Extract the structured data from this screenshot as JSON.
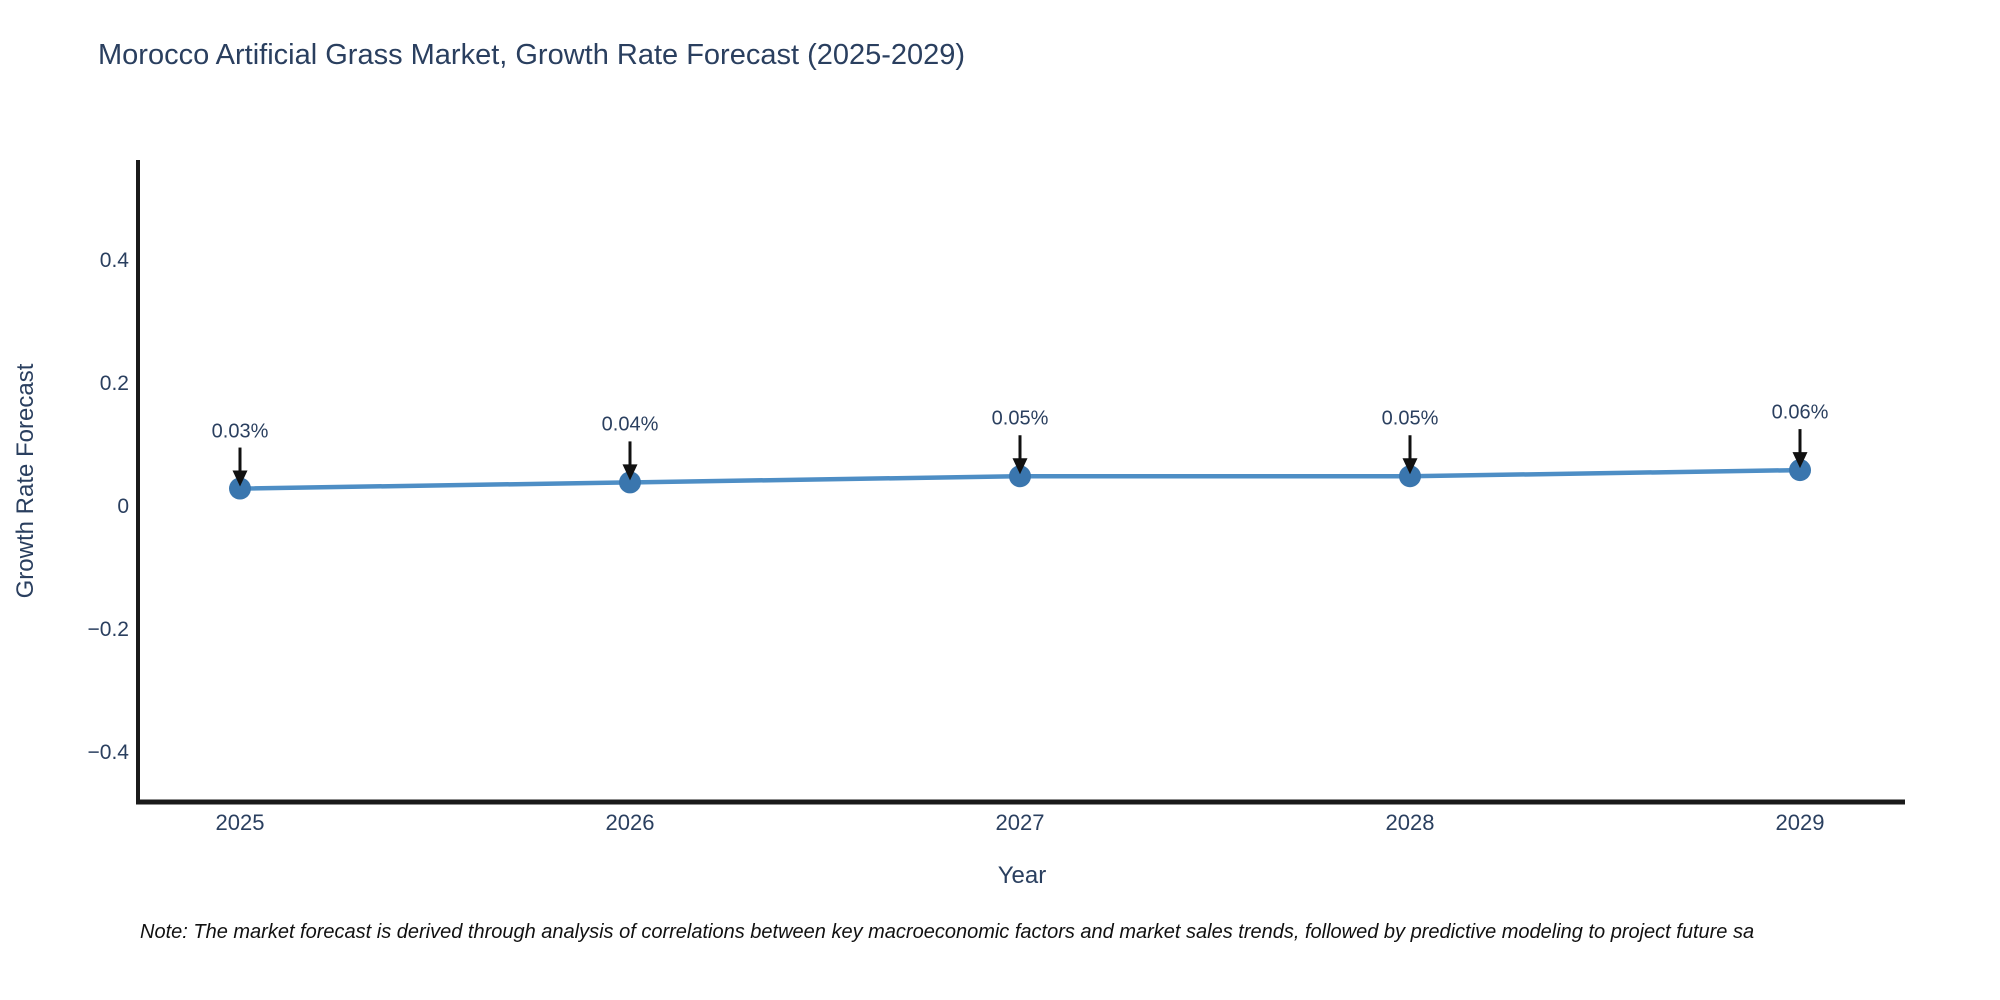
{
  "title": "Morocco Artificial Grass Market, Growth Rate Forecast (2025-2029)",
  "note": "Note: The market forecast is derived through analysis of correlations between key macroeconomic factors and market sales trends, followed by predictive modeling to project future sa",
  "chart_data": {
    "type": "line",
    "title": "Morocco Artificial Grass Market, Growth Rate Forecast (2025-2029)",
    "xlabel": "Year",
    "ylabel": "Growth Rate Forecast",
    "x": [
      2025,
      2026,
      2027,
      2028,
      2029
    ],
    "y": [
      0.03,
      0.04,
      0.05,
      0.05,
      0.06
    ],
    "point_labels": [
      "0.03%",
      "0.04%",
      "0.05%",
      "0.05%",
      "0.06%"
    ],
    "x_ticks": [
      "2025",
      "2026",
      "2027",
      "2028",
      "2029"
    ],
    "y_ticks": [
      "0.4",
      "0.2",
      "0",
      "−0.2",
      "−0.4"
    ],
    "y_tick_values": [
      0.4,
      0.2,
      0,
      -0.2,
      -0.4
    ],
    "xlim": [
      2024.74,
      2029.27
    ],
    "ylim": [
      -0.48,
      0.56
    ],
    "grid": false,
    "legend_position": "none",
    "line_color": "#4E8EC5",
    "marker_color": "#3A76AE",
    "arrow_color": "#111111",
    "axis_color": "#1a1a1a",
    "text_color": "#2a3f5f"
  }
}
